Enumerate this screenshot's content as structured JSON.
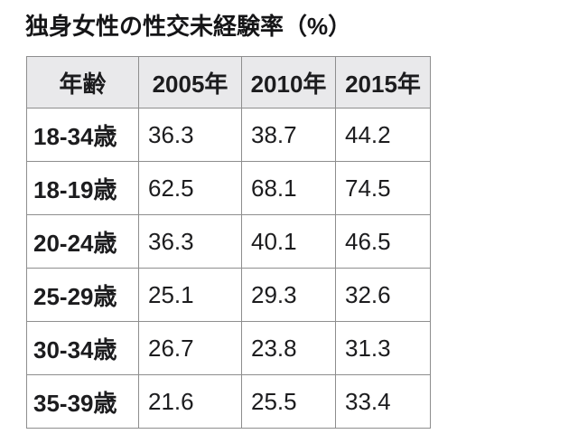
{
  "title": "独身女性の性交未経験率（%）",
  "colors": {
    "background": "#ffffff",
    "header_background": "#e9e9eb",
    "border": "#8e8e8e",
    "text": "#1c1c1e"
  },
  "chart_data": {
    "type": "table",
    "title": "独身女性の性交未経験率（%）",
    "columns": [
      "年齢",
      "2005年",
      "2010年",
      "2015年"
    ],
    "rows": [
      {
        "label": "18-34歳",
        "values": [
          "36.3",
          "38.7",
          "44.2"
        ]
      },
      {
        "label": "18-19歳",
        "values": [
          "62.5",
          "68.1",
          "74.5"
        ]
      },
      {
        "label": "20-24歳",
        "values": [
          "36.3",
          "40.1",
          "46.5"
        ]
      },
      {
        "label": "25-29歳",
        "values": [
          "25.1",
          "29.3",
          "32.6"
        ]
      },
      {
        "label": "30-34歳",
        "values": [
          "26.7",
          "23.8",
          "31.3"
        ]
      },
      {
        "label": "35-39歳",
        "values": [
          "21.6",
          "25.5",
          "33.4"
        ]
      }
    ]
  }
}
